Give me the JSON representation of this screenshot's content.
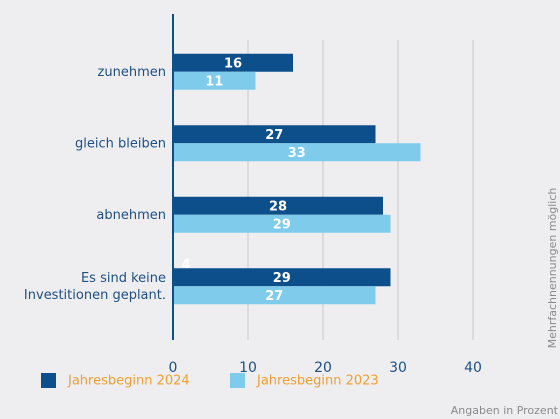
{
  "chart_data": {
    "type": "bar",
    "orientation": "horizontal",
    "categories": [
      "zunehmen",
      "gleich bleiben",
      "abnehmen",
      "Es sind keine\nInvestitionen geplant."
    ],
    "series": [
      {
        "name": "Jahresbeginn 2024",
        "color": "#0d4f8b",
        "values": [
          16,
          27,
          28,
          29
        ]
      },
      {
        "name": "Jahresbeginn 2023",
        "color": "#7ecbec",
        "values": [
          11,
          33,
          29,
          27
        ]
      }
    ],
    "xlim": [
      0,
      50
    ],
    "xticks": [
      0,
      10,
      20,
      30,
      40
    ],
    "grid": true,
    "annotation": "4",
    "side_note": "Mehrfachnennungen möglich",
    "unit_note": "Angaben in Prozent",
    "legend": "bottom"
  }
}
